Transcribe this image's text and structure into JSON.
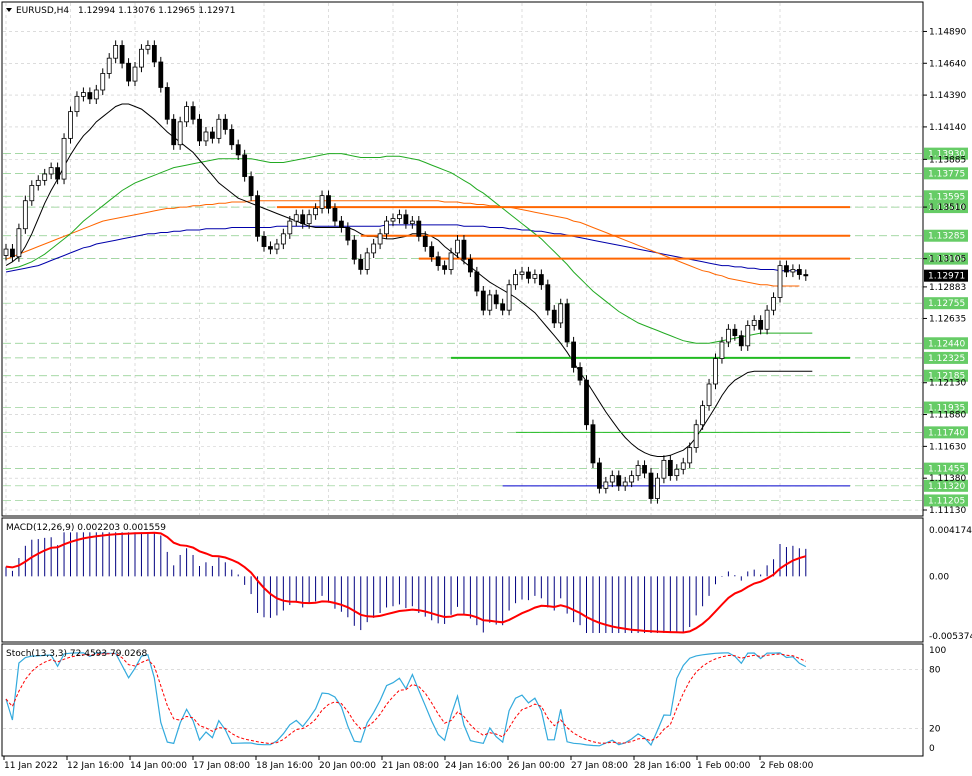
{
  "chart_data": {
    "type": "candlestick",
    "instrument": "EURUSD,H4",
    "ohlc_header": "1.12994 1.13076 1.12965 1.12971",
    "colors": {
      "background": "#ffffff",
      "candle": "#000000",
      "grid": "#c8c8c8",
      "ma_fast": "#000000",
      "ma_mid": "#22aa22",
      "ma_slow_orange": "#ff6600",
      "ma_slow_blue": "#0000aa",
      "resistance": "#ff6600",
      "support": "#22bb22",
      "low_line": "#0000cc",
      "tag_green": "#66cc66",
      "macd_signal": "#ff0000",
      "macd_hist": "#000080",
      "stoch_main": "#33aadd",
      "stoch_signal": "#ff0000"
    },
    "price_axis": {
      "min": 1.1113,
      "max": 1.1498,
      "ticks": [
        "1.14890",
        "1.14640",
        "1.14390",
        "1.14140",
        "1.13885",
        "1.13510",
        "1.13105",
        "1.12883",
        "1.12635",
        "1.12130",
        "1.11880",
        "1.11630",
        "1.11380",
        "1.11130"
      ]
    },
    "price_tags": [
      {
        "label": "1.13930",
        "price": 1.1393,
        "color": "#66cc66"
      },
      {
        "label": "1.13775",
        "price": 1.13775,
        "color": "#66cc66"
      },
      {
        "label": "1.13595",
        "price": 1.13595,
        "color": "#66cc66"
      },
      {
        "label": "1.13510",
        "price": 1.1351,
        "color": "#66cc66"
      },
      {
        "label": "1.13285",
        "price": 1.13285,
        "color": "#66cc66"
      },
      {
        "label": "1.13105",
        "price": 1.13105,
        "color": "#66cc66"
      },
      {
        "label": "1.12971",
        "price": 1.12971,
        "color": "#000000"
      },
      {
        "label": "1.12755",
        "price": 1.12755,
        "color": "#66cc66"
      },
      {
        "label": "1.12440",
        "price": 1.1244,
        "color": "#66cc66"
      },
      {
        "label": "1.12325",
        "price": 1.12325,
        "color": "#66cc66"
      },
      {
        "label": "1.12185",
        "price": 1.12185,
        "color": "#66cc66"
      },
      {
        "label": "1.11935",
        "price": 1.11935,
        "color": "#66cc66"
      },
      {
        "label": "1.11740",
        "price": 1.1174,
        "color": "#66cc66"
      },
      {
        "label": "1.11455",
        "price": 1.11455,
        "color": "#66cc66"
      },
      {
        "label": "1.11320",
        "price": 1.1132,
        "color": "#66cc66"
      },
      {
        "label": "1.11205",
        "price": 1.11205,
        "color": "#66cc66"
      }
    ],
    "date_labels": [
      {
        "label": "11 Jan 2022",
        "i": 0
      },
      {
        "label": "12 Jan 16:00",
        "i": 10
      },
      {
        "label": "14 Jan 00:00",
        "i": 20
      },
      {
        "label": "17 Jan 08:00",
        "i": 30
      },
      {
        "label": "18 Jan 16:00",
        "i": 40
      },
      {
        "label": "20 Jan 00:00",
        "i": 50
      },
      {
        "label": "21 Jan 08:00",
        "i": 60
      },
      {
        "label": "24 Jan 16:00",
        "i": 70
      },
      {
        "label": "26 Jan 00:00",
        "i": 80
      },
      {
        "label": "27 Jan 08:00",
        "i": 90
      },
      {
        "label": "28 Jan 16:00",
        "i": 100
      },
      {
        "label": "1 Feb 00:00",
        "i": 110
      },
      {
        "label": "2 Feb 08:00",
        "i": 120
      }
    ],
    "closes": [
      1.1318,
      1.1312,
      1.1334,
      1.1356,
      1.1368,
      1.1372,
      1.1377,
      1.1382,
      1.1373,
      1.1405,
      1.1426,
      1.1438,
      1.1441,
      1.1436,
      1.1443,
      1.1456,
      1.1468,
      1.1478,
      1.1464,
      1.145,
      1.1461,
      1.1475,
      1.1478,
      1.1465,
      1.1445,
      1.142,
      1.14,
      1.1418,
      1.143,
      1.142,
      1.1403,
      1.141,
      1.1405,
      1.142,
      1.1412,
      1.14,
      1.1392,
      1.1375,
      1.136,
      1.1328,
      1.132,
      1.1318,
      1.1322,
      1.133,
      1.134,
      1.1345,
      1.1338,
      1.1345,
      1.135,
      1.136,
      1.135,
      1.134,
      1.1335,
      1.1325,
      1.131,
      1.1302,
      1.1315,
      1.1322,
      1.133,
      1.134,
      1.1342,
      1.1345,
      1.1338,
      1.134,
      1.1328,
      1.132,
      1.1312,
      1.1305,
      1.1302,
      1.1315,
      1.1325,
      1.131,
      1.13,
      1.1285,
      1.127,
      1.1282,
      1.1275,
      1.127,
      1.129,
      1.1298,
      1.13,
      1.1295,
      1.1298,
      1.129,
      1.127,
      1.126,
      1.1275,
      1.1245,
      1.1225,
      1.1215,
      1.118,
      1.115,
      1.113,
      1.1135,
      1.114,
      1.1132,
      1.1135,
      1.114,
      1.1148,
      1.1142,
      1.1122,
      1.1138,
      1.1152,
      1.114,
      1.1145,
      1.115,
      1.1162,
      1.118,
      1.1195,
      1.1212,
      1.1232,
      1.1245,
      1.1255,
      1.125,
      1.1242,
      1.1258,
      1.1262,
      1.1255,
      1.127,
      1.128,
      1.1305,
      1.13,
      1.1302,
      1.1298,
      1.1297
    ],
    "ma_fast": [
      1.1305,
      1.1308,
      1.1312,
      1.132,
      1.133,
      1.1342,
      1.1354,
      1.1364,
      1.1373,
      1.1383,
      1.1392,
      1.14,
      1.1407,
      1.1412,
      1.1418,
      1.1422,
      1.1426,
      1.143,
      1.1432,
      1.1432,
      1.143,
      1.1428,
      1.1424,
      1.142,
      1.1415,
      1.141,
      1.1406,
      1.1402,
      1.1398,
      1.1394,
      1.1388,
      1.1382,
      1.1376,
      1.137,
      1.1366,
      1.1362,
      1.1358,
      1.1356,
      1.1354,
      1.1352,
      1.135,
      1.1348,
      1.1346,
      1.1344,
      1.1342,
      1.134,
      1.1338,
      1.1336,
      1.1335,
      1.1335,
      1.1335,
      1.1335,
      1.1335,
      1.1335,
      1.1333,
      1.133,
      1.1328,
      1.1328,
      1.1327,
      1.1326,
      1.1326,
      1.1327,
      1.1328,
      1.133,
      1.133,
      1.133,
      1.1328,
      1.1325,
      1.132,
      1.1316,
      1.1312,
      1.1308,
      1.1304,
      1.13,
      1.1296,
      1.1292,
      1.1289,
      1.1286,
      1.1283,
      1.128,
      1.1276,
      1.1272,
      1.1268,
      1.1262,
      1.1256,
      1.125,
      1.1244,
      1.1237,
      1.1229,
      1.1221,
      1.1214,
      1.1206,
      1.1198,
      1.119,
      1.1183,
      1.1176,
      1.117,
      1.1165,
      1.1161,
      1.1158,
      1.1156,
      1.1155,
      1.1155,
      1.1156,
      1.1158,
      1.116,
      1.1164,
      1.117,
      1.1178,
      1.1186,
      1.1194,
      1.1203,
      1.121,
      1.1215,
      1.1218,
      1.1221,
      1.1222,
      1.1222,
      1.1222,
      1.1222,
      1.1222,
      1.1222,
      1.1222,
      1.1222,
      1.1222,
      1.1222
    ],
    "ma_mid": [
      1.1302,
      1.1303,
      1.1304,
      1.1306,
      1.1308,
      1.1311,
      1.1314,
      1.1318,
      1.1322,
      1.1326,
      1.133,
      1.1335,
      1.134,
      1.1344,
      1.1348,
      1.1352,
      1.1356,
      1.136,
      1.1364,
      1.1367,
      1.137,
      1.1372,
      1.1374,
      1.1376,
      1.1378,
      1.138,
      1.1382,
      1.1383,
      1.1384,
      1.1385,
      1.1386,
      1.1387,
      1.1388,
      1.1389,
      1.1389,
      1.1389,
      1.1389,
      1.1389,
      1.1389,
      1.1388,
      1.1387,
      1.1386,
      1.1386,
      1.1386,
      1.1387,
      1.1388,
      1.1389,
      1.139,
      1.1391,
      1.1392,
      1.1393,
      1.1393,
      1.1393,
      1.1392,
      1.1391,
      1.139,
      1.139,
      1.139,
      1.139,
      1.1391,
      1.1391,
      1.1391,
      1.139,
      1.1389,
      1.1388,
      1.1386,
      1.1384,
      1.1382,
      1.138,
      1.1378,
      1.1375,
      1.1372,
      1.1369,
      1.1365,
      1.1362,
      1.1358,
      1.1354,
      1.135,
      1.1346,
      1.1342,
      1.1338,
      1.1334,
      1.133,
      1.1326,
      1.1321,
      1.1316,
      1.1311,
      1.1306,
      1.13,
      1.1295,
      1.129,
      1.1285,
      1.1281,
      1.1277,
      1.1273,
      1.1269,
      1.1266,
      1.1263,
      1.126,
      1.1258,
      1.1256,
      1.1254,
      1.1252,
      1.125,
      1.1248,
      1.1246,
      1.1245,
      1.1244,
      1.1244,
      1.1244,
      1.1245,
      1.1246,
      1.1247,
      1.1248,
      1.1249,
      1.125,
      1.1251,
      1.1252,
      1.1252,
      1.1252,
      1.1252,
      1.1252,
      1.1252,
      1.1252,
      1.1252,
      1.1252
    ],
    "ma_slow_orange": [
      1.131,
      1.1312,
      1.1314,
      1.1316,
      1.1318,
      1.132,
      1.1322,
      1.1324,
      1.1326,
      1.1328,
      1.133,
      1.1332,
      1.1334,
      1.1336,
      1.1338,
      1.134,
      1.1341,
      1.1342,
      1.1343,
      1.1344,
      1.1345,
      1.1346,
      1.1347,
      1.1348,
      1.1349,
      1.135,
      1.135,
      1.1351,
      1.1351,
      1.1352,
      1.1352,
      1.1353,
      1.1353,
      1.1354,
      1.1354,
      1.1355,
      1.1355,
      1.1355,
      1.1356,
      1.1356,
      1.1356,
      1.1356,
      1.1356,
      1.1356,
      1.1356,
      1.1356,
      1.1356,
      1.1356,
      1.1356,
      1.1356,
      1.1356,
      1.1356,
      1.1356,
      1.1356,
      1.1356,
      1.1356,
      1.1356,
      1.1356,
      1.1356,
      1.1356,
      1.1356,
      1.1356,
      1.1356,
      1.1356,
      1.1356,
      1.1356,
      1.1356,
      1.1356,
      1.1355,
      1.1355,
      1.1355,
      1.1354,
      1.1354,
      1.1353,
      1.1353,
      1.1352,
      1.1352,
      1.1351,
      1.1351,
      1.135,
      1.1349,
      1.1348,
      1.1347,
      1.1346,
      1.1345,
      1.1344,
      1.1343,
      1.1342,
      1.134,
      1.1339,
      1.1337,
      1.1335,
      1.1333,
      1.1331,
      1.1329,
      1.1327,
      1.1325,
      1.1323,
      1.1321,
      1.1319,
      1.1317,
      1.1315,
      1.1313,
      1.1311,
      1.1309,
      1.1307,
      1.1305,
      1.1303,
      1.1301,
      1.13,
      1.1298,
      1.1297,
      1.1295,
      1.1294,
      1.1293,
      1.1292,
      1.1291,
      1.129,
      1.129,
      1.1289,
      1.1289,
      1.1289,
      1.1289,
      1.1289
    ],
    "ma_slow_blue": [
      1.13,
      1.1301,
      1.1302,
      1.1303,
      1.1304,
      1.1305,
      1.1307,
      1.1309,
      1.1311,
      1.1313,
      1.1315,
      1.1317,
      1.1319,
      1.132,
      1.1322,
      1.1323,
      1.1324,
      1.1325,
      1.1326,
      1.1327,
      1.1328,
      1.1329,
      1.133,
      1.133,
      1.1331,
      1.1331,
      1.1332,
      1.1332,
      1.1333,
      1.1333,
      1.1333,
      1.1334,
      1.1334,
      1.1334,
      1.1334,
      1.1335,
      1.1335,
      1.1335,
      1.1335,
      1.1335,
      1.1335,
      1.1335,
      1.1336,
      1.1336,
      1.1336,
      1.1336,
      1.1336,
      1.1336,
      1.1336,
      1.1336,
      1.1336,
      1.1336,
      1.1336,
      1.1336,
      1.1336,
      1.1336,
      1.1336,
      1.1336,
      1.1336,
      1.1337,
      1.1337,
      1.1337,
      1.1337,
      1.1337,
      1.1337,
      1.1337,
      1.1337,
      1.1337,
      1.1337,
      1.1337,
      1.1337,
      1.1336,
      1.1336,
      1.1336,
      1.1336,
      1.1335,
      1.1335,
      1.1335,
      1.1334,
      1.1334,
      1.1333,
      1.1333,
      1.1332,
      1.1332,
      1.1331,
      1.133,
      1.133,
      1.1329,
      1.1328,
      1.1327,
      1.1326,
      1.1325,
      1.1324,
      1.1323,
      1.1322,
      1.1321,
      1.132,
      1.1319,
      1.1318,
      1.1317,
      1.1316,
      1.1315,
      1.1314,
      1.1313,
      1.1312,
      1.1311,
      1.131,
      1.1309,
      1.1308,
      1.1307,
      1.1306,
      1.1305,
      1.1305,
      1.1304,
      1.1304,
      1.1303,
      1.1303,
      1.1302,
      1.1302,
      1.1302,
      1.1301,
      1.1301,
      1.1301,
      1.1301
    ],
    "levels": [
      {
        "price": 1.1351,
        "from_i": 84,
        "color": "#ff6600",
        "width": 2
      },
      {
        "price": 1.13285,
        "from_i": 110,
        "color": "#ff6600",
        "width": 2
      },
      {
        "price": 1.13105,
        "from_i": 128,
        "color": "#ff6600",
        "width": 2
      },
      {
        "price": 1.12325,
        "from_i": 138,
        "color": "#22bb22",
        "width": 2
      },
      {
        "price": 1.1174,
        "from_i": 158,
        "color": "#22bb22",
        "width": 1
      },
      {
        "price": 1.1132,
        "from_i": 154,
        "color": "#0000cc",
        "width": 1
      }
    ],
    "macd": {
      "label": "MACD(12,26,9) 0.002203 0.001559",
      "min": -0.005374,
      "max": 0.004174,
      "ticks": [
        "0.004174",
        "0.00",
        "-0.005374"
      ]
    },
    "stoch": {
      "label": "Stoch(13,3,3) 72.4593 79.0268",
      "ticks": [
        "100",
        "80",
        "20",
        "0"
      ]
    }
  }
}
